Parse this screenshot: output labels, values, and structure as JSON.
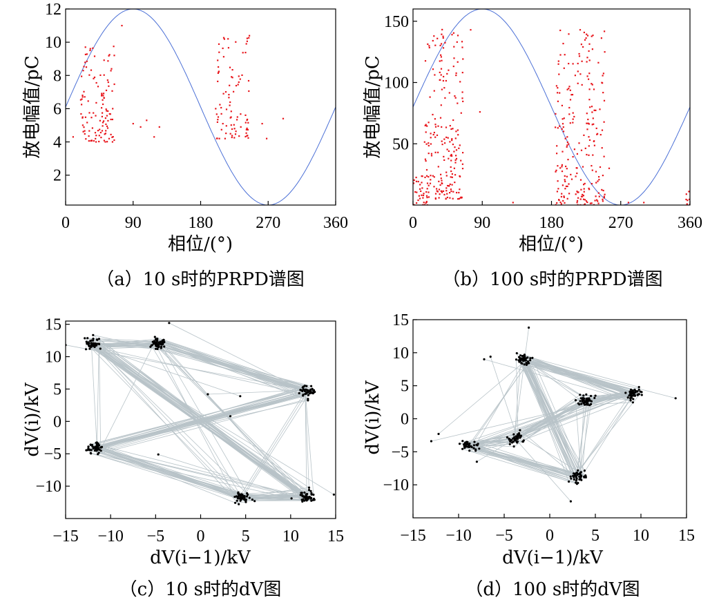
{
  "figure": {
    "panels": [
      {
        "id": "a",
        "caption": "（a）10 s时的PRPD谱图",
        "xlabel": "相位/(°)",
        "ylabel": "放电幅值/pC"
      },
      {
        "id": "b",
        "caption": "（b）100 s时的PRPD谱图",
        "xlabel": "相位/(°)",
        "ylabel": "放电幅值/pC"
      },
      {
        "id": "c",
        "caption": "（c）10 s时的dV图",
        "xlabel": "dV(i−1)/kV",
        "ylabel": "dV(i)/kV"
      },
      {
        "id": "d",
        "caption": "（d）100 s时的dV图",
        "xlabel": "dV(i−1)/kV",
        "ylabel": "dV(i)/kV"
      }
    ]
  },
  "chart_data": [
    {
      "type": "scatter",
      "panel": "a",
      "xlim": [
        0,
        360
      ],
      "ylim": [
        0.2,
        12
      ],
      "xticks": [
        0,
        90,
        180,
        270,
        360
      ],
      "yticks": [
        2,
        4,
        6,
        8,
        10,
        12
      ],
      "reference_curve": {
        "type": "sine",
        "color": "#4a6fd6",
        "period_deg": 360,
        "min": 0.2,
        "max": 12,
        "peak_at_deg": 90
      },
      "point_color": "#e8151b",
      "clusters": [
        {
          "x_range": [
            20,
            65
          ],
          "y_range": [
            4,
            9.8
          ],
          "count": 120
        },
        {
          "x_range": [
            200,
            245
          ],
          "y_range": [
            4.2,
            10.4
          ],
          "count": 90
        }
      ],
      "outliers": [
        [
          75,
          11
        ],
        [
          90,
          5.1
        ],
        [
          100,
          4.9
        ],
        [
          108,
          5.3
        ],
        [
          118,
          4.3
        ],
        [
          125,
          4.9
        ],
        [
          262,
          5.1
        ],
        [
          268,
          4.2
        ],
        [
          290,
          5.4
        ],
        [
          10,
          4.3
        ]
      ]
    },
    {
      "type": "scatter",
      "panel": "b",
      "xlim": [
        0,
        360
      ],
      "ylim": [
        0,
        160
      ],
      "xticks": [
        0,
        90,
        180,
        270,
        360
      ],
      "yticks": [
        50,
        100,
        150
      ],
      "reference_curve": {
        "type": "sine",
        "color": "#4a6fd6",
        "period_deg": 360,
        "min": 0,
        "max": 160,
        "peak_at_deg": 90
      },
      "point_color": "#e8151b",
      "clusters": [
        {
          "x_range": [
            0,
            25
          ],
          "y_range": [
            0,
            25
          ],
          "count": 40
        },
        {
          "x_range": [
            15,
            65
          ],
          "y_range": [
            5,
            145
          ],
          "count": 200
        },
        {
          "x_range": [
            185,
            250
          ],
          "y_range": [
            0,
            145
          ],
          "count": 230
        },
        {
          "x_range": [
            350,
            360
          ],
          "y_range": [
            0,
            12
          ],
          "count": 8
        }
      ],
      "outliers": [
        [
          75,
          143
        ],
        [
          87,
          76
        ],
        [
          130,
          2
        ],
        [
          255,
          30
        ],
        [
          280,
          2
        ],
        [
          300,
          2
        ]
      ]
    },
    {
      "type": "scatter",
      "panel": "c",
      "xlim": [
        -15,
        15
      ],
      "ylim": [
        -15,
        15.5
      ],
      "xticks": [
        -15,
        -10,
        -5,
        0,
        5,
        10,
        15
      ],
      "yticks": [
        -10,
        -5,
        0,
        5,
        10,
        15
      ],
      "point_color": "#000000",
      "line_color": "#b8c3c8",
      "clusters": [
        {
          "x": -12.0,
          "y": 12.0
        },
        {
          "x": -4.7,
          "y": 12.1
        },
        {
          "x": 11.8,
          "y": 4.7
        },
        {
          "x": -11.6,
          "y": -4.2
        },
        {
          "x": 4.6,
          "y": -11.7
        },
        {
          "x": 11.8,
          "y": -11.6
        }
      ],
      "outliers": [
        [
          -3.5,
          15.2
        ],
        [
          0.8,
          4.2
        ],
        [
          3.3,
          0.8
        ],
        [
          4.4,
          3.9
        ],
        [
          -4.7,
          -5.1
        ],
        [
          6.0,
          -12.3
        ],
        [
          10.1,
          -11.9
        ],
        [
          14.8,
          -11.3
        ],
        [
          -15,
          11.8
        ]
      ]
    },
    {
      "type": "scatter",
      "panel": "d",
      "xlim": [
        -15,
        15
      ],
      "ylim": [
        -15,
        15
      ],
      "xticks": [
        -15,
        -10,
        -5,
        0,
        5,
        10,
        15
      ],
      "yticks": [
        -10,
        -5,
        0,
        5,
        10,
        15
      ],
      "point_color": "#000000",
      "line_color": "#b8c3c8",
      "clusters": [
        {
          "x": -2.8,
          "y": 9.0
        },
        {
          "x": 9.3,
          "y": 3.8
        },
        {
          "x": 3.9,
          "y": 2.8
        },
        {
          "x": -3.7,
          "y": -2.9
        },
        {
          "x": -8.8,
          "y": -3.9
        },
        {
          "x": 3.0,
          "y": -8.8
        }
      ],
      "outliers": [
        [
          -2.3,
          13.8
        ],
        [
          13.8,
          3.1
        ],
        [
          -13.0,
          -3.4
        ],
        [
          -6.5,
          9.4
        ],
        [
          -7.2,
          9.0
        ],
        [
          -8.0,
          -6.5
        ],
        [
          2.3,
          -12.5
        ],
        [
          -12.2,
          -2.3
        ]
      ]
    }
  ]
}
